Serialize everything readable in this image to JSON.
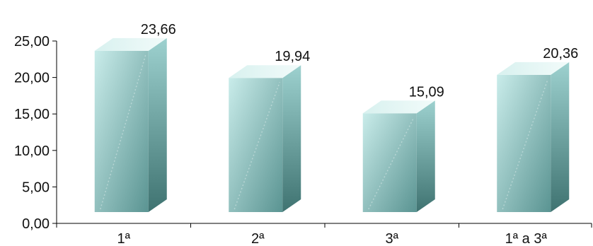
{
  "chart_data": {
    "type": "bar",
    "categories": [
      "1ª",
      "2ª",
      "3ª",
      "1ª a 3ª"
    ],
    "values": [
      23.66,
      19.94,
      15.09,
      20.36
    ],
    "value_labels": [
      "23,66",
      "19,94",
      "15,09",
      "20,36"
    ],
    "yticks": [
      "0,00",
      "5,00",
      "10,00",
      "15,00",
      "20,00",
      "25,00"
    ],
    "ylim": [
      0,
      25
    ],
    "title": "",
    "xlabel": "",
    "ylabel": "",
    "grid": false,
    "legend": "none",
    "colors": {
      "front_light": "#c9ecea",
      "front_dark": "#5a9492",
      "top": "#e6f7f6",
      "side_light": "#9dd1cf",
      "side_dark": "#3f7371",
      "axis": "#000000"
    }
  }
}
